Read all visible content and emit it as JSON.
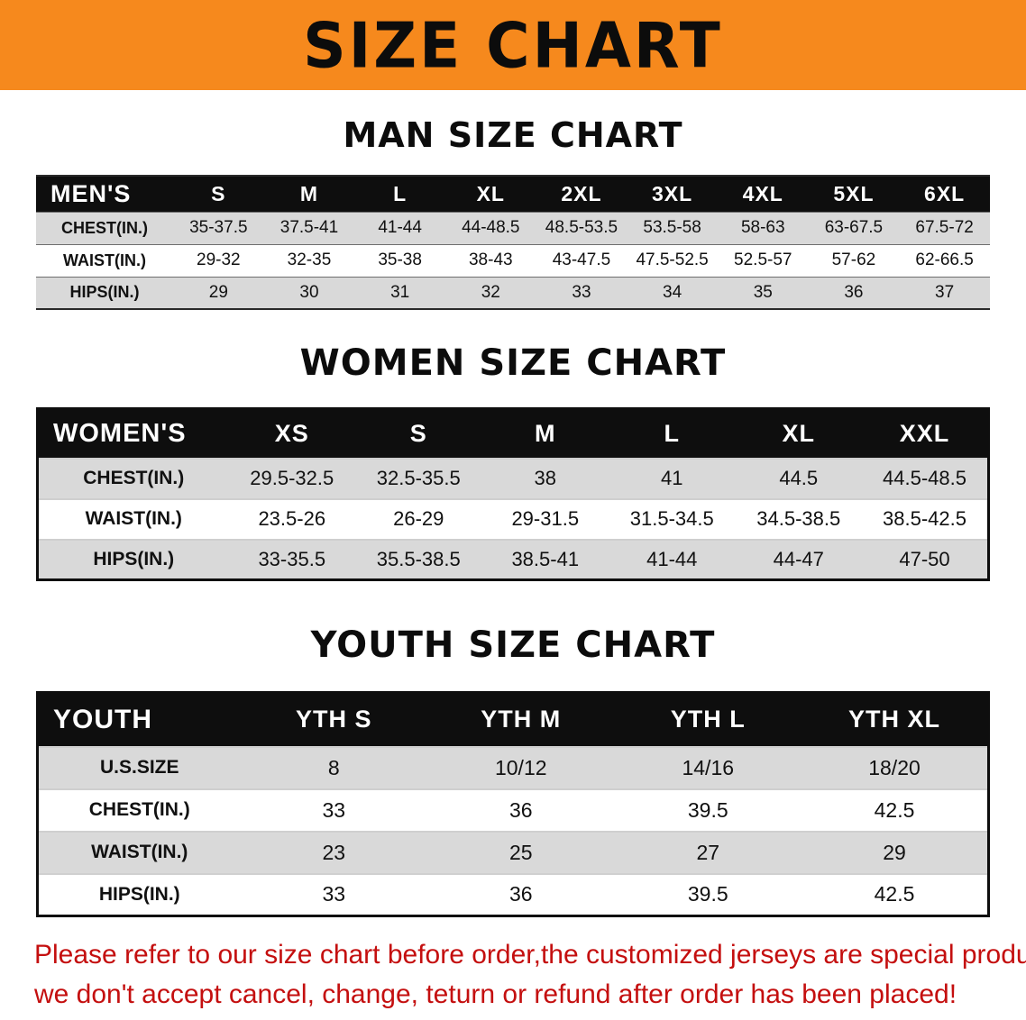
{
  "banner": {
    "title": "SIZE CHART",
    "bg_color": "#F6891D",
    "text_color": "#0c0c0c"
  },
  "sections": [
    {
      "heading": "MAN SIZE CHART",
      "table": {
        "header_label": "MEN'S",
        "columns": [
          "S",
          "M",
          "L",
          "XL",
          "2XL",
          "3XL",
          "4XL",
          "5XL",
          "6XL"
        ],
        "rows": [
          {
            "label": "CHEST(IN.)",
            "values": [
              "35-37.5",
              "37.5-41",
              "41-44",
              "44-48.5",
              "48.5-53.5",
              "53.5-58",
              "58-63",
              "63-67.5",
              "67.5-72"
            ]
          },
          {
            "label": "WAIST(IN.)",
            "values": [
              "29-32",
              "32-35",
              "35-38",
              "38-43",
              "43-47.5",
              "47.5-52.5",
              "52.5-57",
              "57-62",
              "62-66.5"
            ]
          },
          {
            "label": "HIPS(IN.)",
            "values": [
              "29",
              "30",
              "31",
              "32",
              "33",
              "34",
              "35",
              "36",
              "37"
            ]
          }
        ]
      }
    },
    {
      "heading": "WOMEN SIZE CHART",
      "table": {
        "header_label": "WOMEN'S",
        "columns": [
          "XS",
          "S",
          "M",
          "L",
          "XL",
          "XXL"
        ],
        "rows": [
          {
            "label": "CHEST(IN.)",
            "values": [
              "29.5-32.5",
              "32.5-35.5",
              "38",
              "41",
              "44.5",
              "44.5-48.5"
            ]
          },
          {
            "label": "WAIST(IN.)",
            "values": [
              "23.5-26",
              "26-29",
              "29-31.5",
              "31.5-34.5",
              "34.5-38.5",
              "38.5-42.5"
            ]
          },
          {
            "label": "HIPS(IN.)",
            "values": [
              "33-35.5",
              "35.5-38.5",
              "38.5-41",
              "41-44",
              "44-47",
              "47-50"
            ]
          }
        ]
      }
    },
    {
      "heading": "YOUTH SIZE CHART",
      "table": {
        "header_label": "YOUTH",
        "columns": [
          "YTH S",
          "YTH M",
          "YTH L",
          "YTH XL"
        ],
        "rows": [
          {
            "label": "U.S.SIZE",
            "values": [
              "8",
              "10/12",
              "14/16",
              "18/20"
            ]
          },
          {
            "label": "CHEST(IN.)",
            "values": [
              "33",
              "36",
              "39.5",
              "42.5"
            ]
          },
          {
            "label": "WAIST(IN.)",
            "values": [
              "23",
              "25",
              "27",
              "29"
            ]
          },
          {
            "label": "HIPS(IN.)",
            "values": [
              "33",
              "36",
              "39.5",
              "42.5"
            ]
          }
        ]
      }
    }
  ],
  "footer": {
    "line1": "Please refer to our size chart before order,the customized jerseys are special products,",
    "line2": "we don't accept cancel, change, teturn or refund after order has been placed!",
    "text_color": "#c40f0f"
  }
}
